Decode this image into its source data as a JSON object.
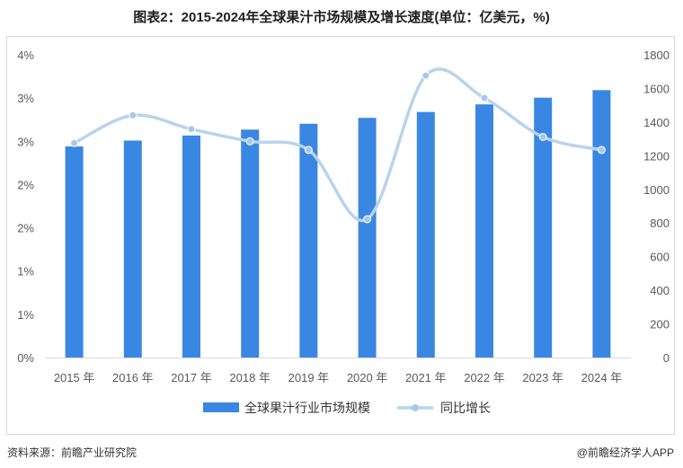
{
  "title": "图表2：2015-2024年全球果汁市场规模及增长速度(单位：亿美元，%)",
  "source_left": "资料来源：前瞻产业研究院",
  "source_right": "@前瞻经济学人APP",
  "colors": {
    "bar": "#3a87e3",
    "line": "#b9d3ec",
    "line_marker": "#a9c7ea"
  },
  "chart_data": {
    "type": "bar",
    "title": "图表2：2015-2024年全球果汁市场规模及增长速度(单位：亿美元，%)",
    "categories": [
      "2015 年",
      "2016 年",
      "2017 年",
      "2018 年",
      "2019 年",
      "2020 年",
      "2021 年",
      "2022 年",
      "2023 年",
      "2024 年"
    ],
    "y_left_ticks": [
      "0%",
      "1%",
      "1%",
      "2%",
      "2%",
      "3%",
      "3%",
      "4%"
    ],
    "y_left_lim": [
      0,
      3.5
    ],
    "y_right_ticks": [
      "0",
      "200",
      "400",
      "600",
      "800",
      "1000",
      "1200",
      "1400",
      "1600",
      "1800"
    ],
    "y_right_lim": [
      0,
      1800
    ],
    "series": [
      {
        "name": "全球果汁行业市场规模",
        "type": "bar",
        "axis": "right",
        "values": [
          1255,
          1290,
          1320,
          1355,
          1390,
          1425,
          1460,
          1505,
          1545,
          1590
        ]
      },
      {
        "name": "同比增长",
        "type": "line",
        "axis": "left",
        "values": [
          2.48,
          2.8,
          2.64,
          2.5,
          2.4,
          1.6,
          3.26,
          3.0,
          2.55,
          2.4
        ]
      }
    ],
    "legend_position": "bottom"
  }
}
